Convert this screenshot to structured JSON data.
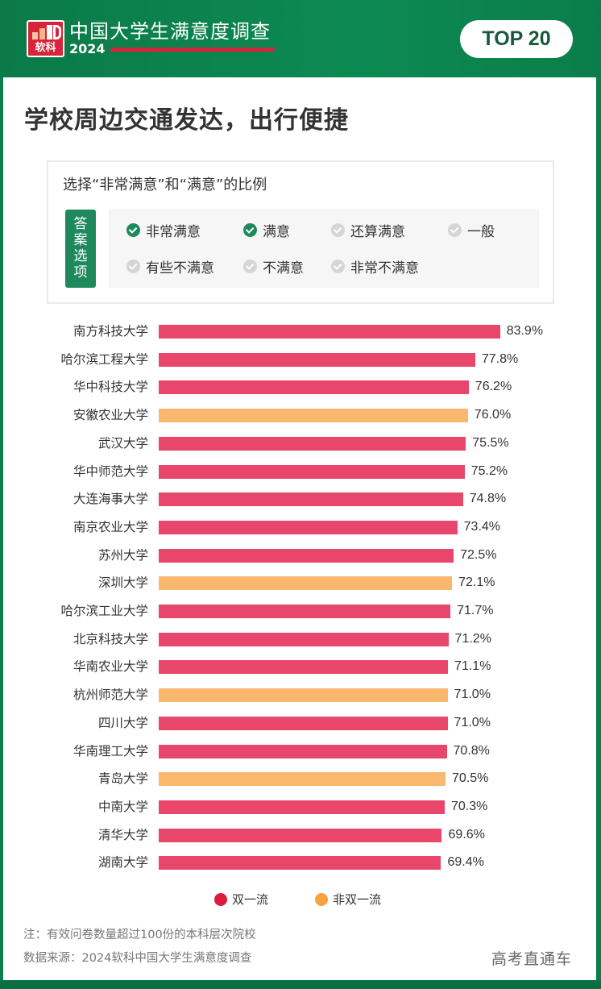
{
  "header": {
    "logo_text": "软科",
    "brand_title": "中国大学生满意度调查",
    "brand_year": "2024",
    "badge": "TOP 20"
  },
  "page_title": "学校周边交通发达，出行便捷",
  "options": {
    "title": "选择“非常满意”和“满意”的比例",
    "tag_chars": [
      "答",
      "案",
      "选",
      "项"
    ],
    "items": [
      {
        "label": "非常满意",
        "selected": true
      },
      {
        "label": "满意",
        "selected": true
      },
      {
        "label": "还算满意",
        "selected": false
      },
      {
        "label": "一般",
        "selected": false
      },
      {
        "label": "有些不满意",
        "selected": false
      },
      {
        "label": "不满意",
        "selected": false
      },
      {
        "label": "非常不满意",
        "selected": false
      }
    ]
  },
  "colors": {
    "double_first_class": "#e8466a",
    "non_double_first_class": "#f9b86e",
    "legend_double": "#e0193f",
    "legend_non": "#f7a23c",
    "brand_green": "#1e8a5c"
  },
  "chart_data": {
    "type": "bar",
    "orientation": "horizontal",
    "title": "学校周边交通发达，出行便捷",
    "subtitle": "选择“非常满意”和“满意”的比例",
    "xlabel": "",
    "ylabel": "",
    "unit": "%",
    "grid": false,
    "legend_position": "bottom",
    "categories": [
      "南方科技大学",
      "哈尔滨工程大学",
      "华中科技大学",
      "安徽农业大学",
      "武汉大学",
      "华中师范大学",
      "大连海事大学",
      "南京农业大学",
      "苏州大学",
      "深圳大学",
      "哈尔滨工业大学",
      "北京科技大学",
      "华南农业大学",
      "杭州师范大学",
      "四川大学",
      "华南理工大学",
      "青岛大学",
      "中南大学",
      "清华大学",
      "湖南大学"
    ],
    "values": [
      83.9,
      77.8,
      76.2,
      76.0,
      75.5,
      75.2,
      74.8,
      73.4,
      72.5,
      72.1,
      71.7,
      71.2,
      71.1,
      71.0,
      71.0,
      70.8,
      70.5,
      70.3,
      69.6,
      69.4
    ],
    "value_labels": [
      "83.9%",
      "77.8%",
      "76.2%",
      "76.0%",
      "75.5%",
      "75.2%",
      "74.8%",
      "73.4%",
      "72.5%",
      "72.1%",
      "71.7%",
      "71.2%",
      "71.1%",
      "71.0%",
      "71.0%",
      "70.8%",
      "70.5%",
      "70.3%",
      "69.6%",
      "69.4%"
    ],
    "groups": [
      "双一流",
      "双一流",
      "双一流",
      "非双一流",
      "双一流",
      "双一流",
      "双一流",
      "双一流",
      "双一流",
      "非双一流",
      "双一流",
      "双一流",
      "双一流",
      "非双一流",
      "双一流",
      "双一流",
      "非双一流",
      "双一流",
      "双一流",
      "双一流"
    ],
    "legend": [
      "双一流",
      "非双一流"
    ]
  },
  "legend": {
    "double": "双一流",
    "non_double": "非双一流"
  },
  "footer": {
    "note": "注：有效问卷数量超过100份的本科层次院校",
    "source": "数据来源：2024软科中国大学生满意度调查",
    "watermark": "高考直通车"
  }
}
